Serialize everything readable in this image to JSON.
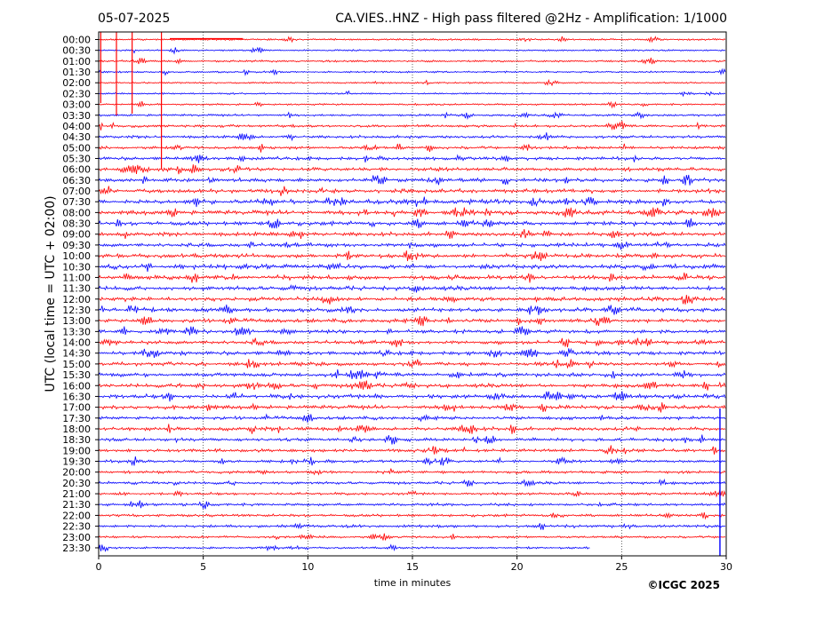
{
  "header": {
    "date": "05-07-2025",
    "title": "CA.VIES..HNZ - High pass filtered @2Hz - Amplification: 1/1000"
  },
  "footer": {
    "credit": "©ICGC 2025"
  },
  "colors": {
    "odd_trace": "#ff0000",
    "even_trace": "#0000ff",
    "grid": "#000000",
    "axes": "#000000"
  },
  "chart_data": {
    "type": "line",
    "title": "CA.VIES..HNZ - High pass filtered @2Hz - Amplification: 1/1000",
    "xlabel": "time in minutes",
    "ylabel": "UTC (local time = UTC + 02:00)",
    "xlim": [
      0,
      30
    ],
    "xticks": [
      0,
      5,
      10,
      15,
      20,
      25,
      30
    ],
    "grid": "vertical dotted lines at each x tick",
    "series_colors": [
      "red",
      "blue"
    ],
    "last_trace_end_minute": 23.5,
    "traces": [
      {
        "label": "00:00",
        "color": "red",
        "activity": 0.5
      },
      {
        "label": "00:30",
        "color": "blue",
        "activity": 0.4
      },
      {
        "label": "01:00",
        "color": "red",
        "activity": 0.6
      },
      {
        "label": "01:30",
        "color": "blue",
        "activity": 0.5
      },
      {
        "label": "02:00",
        "color": "red",
        "activity": 0.4
      },
      {
        "label": "02:30",
        "color": "blue",
        "activity": 0.4
      },
      {
        "label": "03:00",
        "color": "red",
        "activity": 0.5
      },
      {
        "label": "03:30",
        "color": "blue",
        "activity": 0.7
      },
      {
        "label": "04:00",
        "color": "red",
        "activity": 1.0
      },
      {
        "label": "04:30",
        "color": "blue",
        "activity": 1.0
      },
      {
        "label": "05:00",
        "color": "red",
        "activity": 1.1
      },
      {
        "label": "05:30",
        "color": "blue",
        "activity": 1.3
      },
      {
        "label": "06:00",
        "color": "red",
        "activity": 1.6
      },
      {
        "label": "06:30",
        "color": "blue",
        "activity": 1.6
      },
      {
        "label": "07:00",
        "color": "red",
        "activity": 1.7
      },
      {
        "label": "07:30",
        "color": "blue",
        "activity": 1.9
      },
      {
        "label": "08:00",
        "color": "red",
        "activity": 1.9
      },
      {
        "label": "08:30",
        "color": "blue",
        "activity": 1.8
      },
      {
        "label": "09:00",
        "color": "red",
        "activity": 1.6
      },
      {
        "label": "09:30",
        "color": "blue",
        "activity": 1.6
      },
      {
        "label": "10:00",
        "color": "red",
        "activity": 1.8
      },
      {
        "label": "10:30",
        "color": "blue",
        "activity": 2.0
      },
      {
        "label": "11:00",
        "color": "red",
        "activity": 1.9
      },
      {
        "label": "11:30",
        "color": "blue",
        "activity": 1.9
      },
      {
        "label": "12:00",
        "color": "red",
        "activity": 1.8
      },
      {
        "label": "12:30",
        "color": "blue",
        "activity": 1.8
      },
      {
        "label": "13:00",
        "color": "red",
        "activity": 1.7
      },
      {
        "label": "13:30",
        "color": "blue",
        "activity": 1.5
      },
      {
        "label": "14:00",
        "color": "red",
        "activity": 1.6
      },
      {
        "label": "14:30",
        "color": "blue",
        "activity": 1.6
      },
      {
        "label": "15:00",
        "color": "red",
        "activity": 1.5
      },
      {
        "label": "15:30",
        "color": "blue",
        "activity": 1.5
      },
      {
        "label": "16:00",
        "color": "red",
        "activity": 1.7
      },
      {
        "label": "16:30",
        "color": "blue",
        "activity": 1.8
      },
      {
        "label": "17:00",
        "color": "red",
        "activity": 1.6
      },
      {
        "label": "17:30",
        "color": "blue",
        "activity": 1.4
      },
      {
        "label": "18:00",
        "color": "red",
        "activity": 1.5
      },
      {
        "label": "18:30",
        "color": "blue",
        "activity": 1.3
      },
      {
        "label": "19:00",
        "color": "red",
        "activity": 1.3
      },
      {
        "label": "19:30",
        "color": "blue",
        "activity": 1.1
      },
      {
        "label": "20:00",
        "color": "red",
        "activity": 1.1
      },
      {
        "label": "20:30",
        "color": "blue",
        "activity": 1.1
      },
      {
        "label": "21:00",
        "color": "red",
        "activity": 1.0
      },
      {
        "label": "21:30",
        "color": "blue",
        "activity": 1.0
      },
      {
        "label": "22:00",
        "color": "red",
        "activity": 1.0
      },
      {
        "label": "22:30",
        "color": "blue",
        "activity": 1.1
      },
      {
        "label": "23:00",
        "color": "red",
        "activity": 0.8
      },
      {
        "label": "23:30",
        "color": "blue",
        "activity": 0.6
      }
    ]
  }
}
